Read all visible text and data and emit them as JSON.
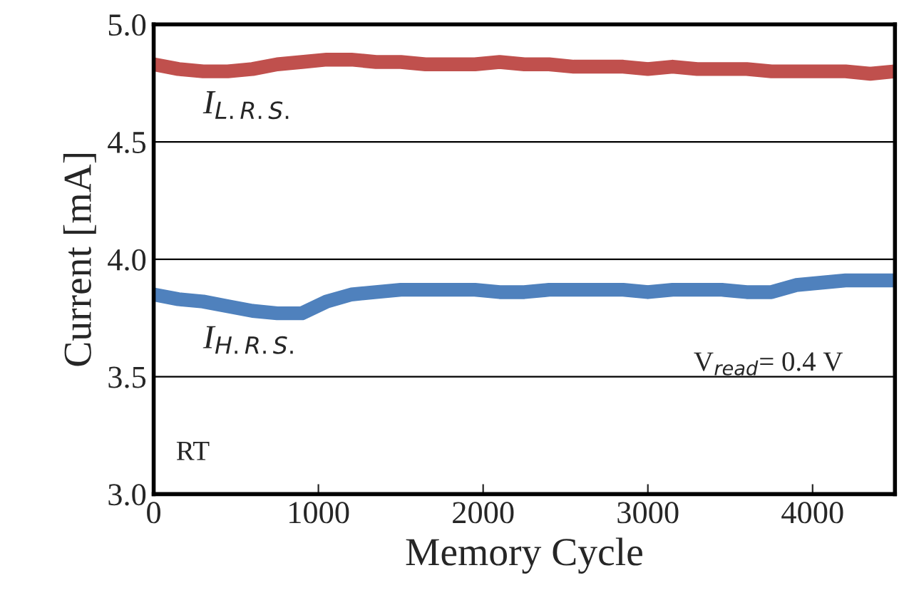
{
  "chart_data": {
    "type": "line",
    "xlabel": "Memory Cycle",
    "ylabel": "Current [mA]",
    "x": [
      0,
      150,
      300,
      450,
      600,
      750,
      900,
      1050,
      1200,
      1350,
      1500,
      1650,
      1800,
      1950,
      2100,
      2250,
      2400,
      2550,
      2700,
      2850,
      3000,
      3150,
      3300,
      3450,
      3600,
      3750,
      3900,
      4050,
      4200,
      4350,
      4500
    ],
    "series": [
      {
        "name": "I$_{L.R.S.}$",
        "color": "#c0504d",
        "values": [
          4.83,
          4.81,
          4.8,
          4.8,
          4.81,
          4.83,
          4.84,
          4.85,
          4.85,
          4.84,
          4.84,
          4.83,
          4.83,
          4.83,
          4.84,
          4.83,
          4.83,
          4.82,
          4.82,
          4.82,
          4.81,
          4.82,
          4.81,
          4.81,
          4.81,
          4.8,
          4.8,
          4.8,
          4.8,
          4.79,
          4.8
        ]
      },
      {
        "name": "I$_{H.R.S.}$",
        "color": "#4f81bd",
        "values": [
          3.85,
          3.83,
          3.82,
          3.8,
          3.78,
          3.77,
          3.77,
          3.82,
          3.85,
          3.86,
          3.87,
          3.87,
          3.87,
          3.87,
          3.86,
          3.86,
          3.87,
          3.87,
          3.87,
          3.87,
          3.86,
          3.87,
          3.87,
          3.87,
          3.86,
          3.86,
          3.89,
          3.9,
          3.91,
          3.91,
          3.91
        ]
      }
    ],
    "xlim": [
      0,
      4500
    ],
    "xticks": [
      0,
      1000,
      2000,
      3000,
      4000
    ],
    "ylim": [
      3.0,
      5.0
    ],
    "yticks": [
      {
        "value": 3.0,
        "label": "3.0"
      },
      {
        "value": 3.5,
        "label": "3.5"
      },
      {
        "value": 4.0,
        "label": "4.0"
      },
      {
        "value": 4.5,
        "label": "4.5"
      },
      {
        "value": 5.0,
        "label": "5.0"
      }
    ],
    "grid": "y",
    "legend": false,
    "marker": "none",
    "line_style": "solid",
    "annotations": [
      "V$_{read}$= 0.4 V",
      "RT"
    ]
  }
}
